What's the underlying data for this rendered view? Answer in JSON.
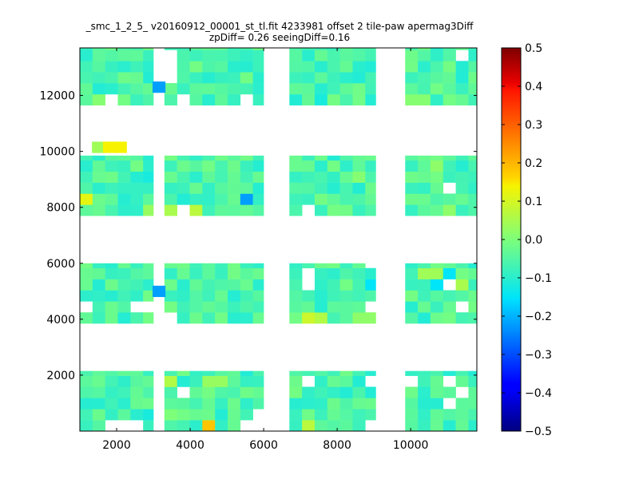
{
  "chart_data": {
    "type": "heatmap",
    "title": "_smc_1_2_5_ v20160912_00001_st_tl.fit 4233981 offset 2 tile-paw apermag3Diff",
    "subtitle": "zpDiff= 0.26 seeingDiff=0.16",
    "xlim": [
      1000,
      11800
    ],
    "ylim": [
      0,
      13700
    ],
    "xticks": [
      2000,
      4000,
      6000,
      8000,
      10000
    ],
    "yticks": [
      2000,
      4000,
      6000,
      8000,
      10000,
      12000
    ],
    "cbar": {
      "vmin": -0.5,
      "vmax": 0.5,
      "ticks": [
        "0.5",
        "0.4",
        "0.3",
        "0.2",
        "0.1",
        "0.0",
        "−0.1",
        "−0.2",
        "−0.3",
        "−0.4",
        "−0.5"
      ],
      "colormap": "jet"
    },
    "cell": {
      "dx": 344,
      "dy": 396
    },
    "columns": [
      {
        "x0": 1000,
        "x1": 3000
      },
      {
        "x0": 3300,
        "x1": 6000
      },
      {
        "x0": 6700,
        "x1": 9050
      },
      {
        "x0": 9850,
        "x1": 11850
      }
    ],
    "rows": [
      {
        "y0": 0,
        "y1": 2150
      },
      {
        "y0": 3850,
        "y1": 6000
      },
      {
        "y0": 7700,
        "y1": 9850
      },
      {
        "y0": 11650,
        "y1": 13700
      }
    ],
    "base_value": -0.06,
    "highlights": [
      {
        "x": 1200,
        "y": 8100,
        "v": 0.12
      },
      {
        "x": 1500,
        "y": 10150,
        "v": 0.04
      },
      {
        "x": 1800,
        "y": 10150,
        "v": 0.14
      },
      {
        "x": 2100,
        "y": 10150,
        "v": 0.14
      },
      {
        "x": 2850,
        "y": 7950,
        "v": 0.03
      },
      {
        "x": 3150,
        "y": 12300,
        "v": -0.22
      },
      {
        "x": 3150,
        "y": 5000,
        "v": -0.22
      },
      {
        "x": 2850,
        "y": 9150,
        "v": -0.12
      },
      {
        "x": 2850,
        "y": 600,
        "v": -0.12
      },
      {
        "x": 5700,
        "y": 8400,
        "v": -0.22
      },
      {
        "x": 4500,
        "y": 200,
        "v": 0.18
      },
      {
        "x": 3500,
        "y": 1950,
        "v": 0.06
      },
      {
        "x": 3500,
        "y": 8000,
        "v": 0.05
      },
      {
        "x": 4250,
        "y": 8000,
        "v": 0.07
      },
      {
        "x": 7350,
        "y": 4000,
        "v": 0.09
      },
      {
        "x": 7700,
        "y": 4000,
        "v": 0.06
      },
      {
        "x": 7350,
        "y": 300,
        "v": 0.07
      },
      {
        "x": 7350,
        "y": 1900,
        "v": 0.01
      },
      {
        "x": 3500,
        "y": 400,
        "v": 0.0
      },
      {
        "x": 7700,
        "y": 12000,
        "v": -0.12
      },
      {
        "x": 8800,
        "y": 5400,
        "v": -0.15
      },
      {
        "x": 10700,
        "y": 5400,
        "v": -0.15
      },
      {
        "x": 11150,
        "y": 5800,
        "v": -0.15
      },
      {
        "x": 10350,
        "y": 5800,
        "v": 0.04
      },
      {
        "x": 10700,
        "y": 5800,
        "v": 0.04
      },
      {
        "x": 11500,
        "y": 5400,
        "v": 0.05
      },
      {
        "x": 10700,
        "y": 9500,
        "v": 0.02
      },
      {
        "x": 10050,
        "y": 12000,
        "v": 0.01
      },
      {
        "x": 10350,
        "y": 12000,
        "v": 0.01
      },
      {
        "x": 1350,
        "y": 12000,
        "v": 0.01
      },
      {
        "x": 1700,
        "y": 12000,
        "v": 0.01
      },
      {
        "x": 4500,
        "y": 1950,
        "v": 0.03
      },
      {
        "x": 4850,
        "y": 1950,
        "v": 0.03
      },
      {
        "x": 8550,
        "y": 3950,
        "v": 0.02
      },
      {
        "x": 8950,
        "y": 3950,
        "v": 0.02
      },
      {
        "x": 8550,
        "y": 9150,
        "v": 0.01
      },
      {
        "x": 11150,
        "y": 8000,
        "v": 0.02
      }
    ],
    "holes": [
      {
        "x": 3500,
        "y": 13450
      },
      {
        "x": 3500,
        "y": 13050
      },
      {
        "x": 3500,
        "y": 12650
      },
      {
        "x": 1200,
        "y": 4450
      },
      {
        "x": 2450,
        "y": 4450
      },
      {
        "x": 2850,
        "y": 4450
      },
      {
        "x": 3500,
        "y": 4050
      },
      {
        "x": 7050,
        "y": 5450
      },
      {
        "x": 7050,
        "y": 5050
      },
      {
        "x": 8900,
        "y": 4450
      },
      {
        "x": 9050,
        "y": 5850
      },
      {
        "x": 11150,
        "y": 5050
      },
      {
        "x": 11500,
        "y": 4450
      },
      {
        "x": 11150,
        "y": 8850
      },
      {
        "x": 11500,
        "y": 1500
      },
      {
        "x": 11150,
        "y": 1900
      },
      {
        "x": 11150,
        "y": 1100
      },
      {
        "x": 2450,
        "y": 300
      },
      {
        "x": 2100,
        "y": 300
      },
      {
        "x": 1700,
        "y": 300
      },
      {
        "x": 5700,
        "y": 300
      },
      {
        "x": 6050,
        "y": 300
      },
      {
        "x": 6050,
        "y": 700
      },
      {
        "x": 3900,
        "y": 1500
      },
      {
        "x": 8900,
        "y": 1900
      },
      {
        "x": 8900,
        "y": 300
      },
      {
        "x": 10050,
        "y": 1900
      },
      {
        "x": 7050,
        "y": 1900
      },
      {
        "x": 3900,
        "y": 7700
      },
      {
        "x": 7050,
        "y": 7700
      },
      {
        "x": 1700,
        "y": 11650
      },
      {
        "x": 5700,
        "y": 11650
      },
      {
        "x": 3900,
        "y": 11650
      },
      {
        "x": 9300,
        "y": 8000
      },
      {
        "x": 11500,
        "y": 13450
      },
      {
        "x": 3150,
        "y": 11650
      }
    ],
    "color_stops": [
      [
        0.0,
        "#00007f"
      ],
      [
        0.11,
        "#0000ff"
      ],
      [
        0.125,
        "#0000ff"
      ],
      [
        0.34,
        "#00dcff"
      ],
      [
        0.35,
        "#00e5f7"
      ],
      [
        0.5,
        "#7dff7a"
      ],
      [
        0.64,
        "#f7f300"
      ],
      [
        0.66,
        "#ffd700"
      ],
      [
        0.89,
        "#ff1400"
      ],
      [
        0.91,
        "#e80000"
      ],
      [
        1.0,
        "#7f0000"
      ]
    ]
  }
}
